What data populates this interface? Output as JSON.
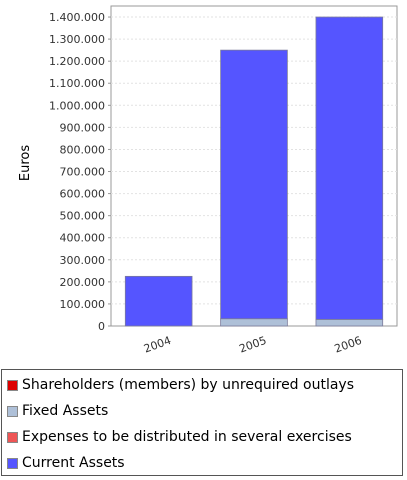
{
  "chart_data": {
    "type": "bar",
    "stacked": true,
    "title": "",
    "ylabel": "Euros",
    "xlabel": "",
    "ylim": [
      0,
      1450000
    ],
    "yticks": [
      0,
      100000,
      200000,
      300000,
      400000,
      500000,
      600000,
      700000,
      800000,
      900000,
      1000000,
      1100000,
      1200000,
      1300000,
      1400000
    ],
    "ytick_labels": [
      "0",
      "100.000",
      "200.000",
      "300.000",
      "400.000",
      "500.000",
      "600.000",
      "700.000",
      "800.000",
      "900.000",
      "1.000.000",
      "1.100.000",
      "1.200.000",
      "1.300.000",
      "1.400.000"
    ],
    "categories": [
      "2004",
      "2005",
      "2006"
    ],
    "grid": true,
    "legend_placement": "bottom",
    "series": [
      {
        "name": "Shareholders (members) by unrequired outlays",
        "color": "#dd0000",
        "values": [
          0,
          0,
          0
        ]
      },
      {
        "name": "Fixed Assets",
        "color": "#aec0d8",
        "values": [
          0,
          33000,
          30000
        ]
      },
      {
        "name": "Expenses to be distributed in several exercises",
        "color": "#ee5555",
        "values": [
          0,
          0,
          0
        ]
      },
      {
        "name": "Current Assets",
        "color": "#5555ff",
        "values": [
          225000,
          1217000,
          1370000
        ]
      }
    ]
  }
}
